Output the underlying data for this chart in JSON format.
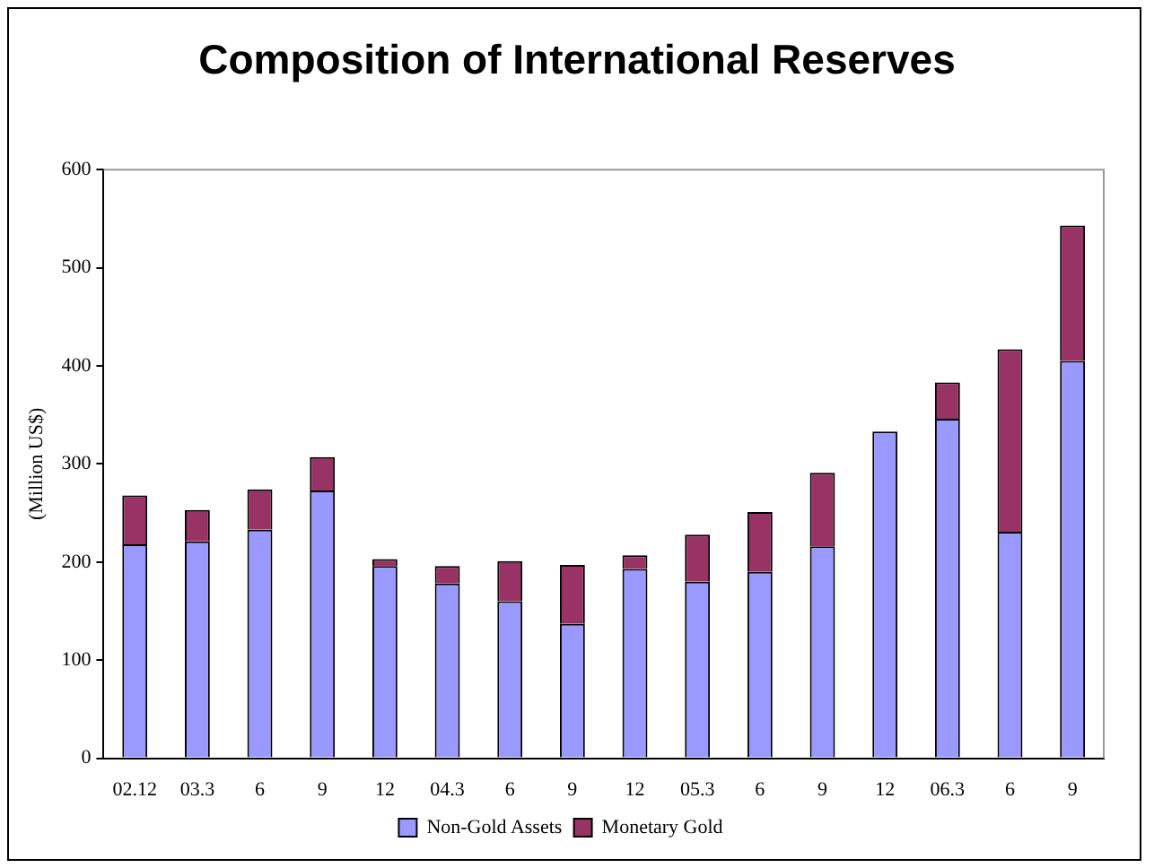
{
  "chart_data": {
    "type": "bar",
    "title": "Composition of International Reserves",
    "ylabel": "(Million US$)",
    "stacked": true,
    "categories": [
      "02.12",
      "03.3",
      "6",
      "9",
      "12",
      "04.3",
      "6",
      "9",
      "12",
      "05.3",
      "6",
      "9",
      "12",
      "06.3",
      "6",
      "9"
    ],
    "series": [
      {
        "name": "Non-Gold Assets",
        "color": "#9999ff",
        "values": [
          218,
          221,
          233,
          273,
          196,
          178,
          160,
          137,
          193,
          180,
          190,
          216,
          333,
          346,
          231,
          405
        ]
      },
      {
        "name": "Monetary Gold",
        "color": "#993366",
        "values": [
          50,
          32,
          41,
          34,
          7,
          18,
          41,
          60,
          14,
          48,
          61,
          75,
          0,
          37,
          186,
          138
        ]
      }
    ],
    "ylim": [
      0,
      600
    ],
    "yticks": [
      0,
      100,
      200,
      300,
      400,
      500,
      600
    ],
    "grid": false,
    "legend": "bottom"
  }
}
